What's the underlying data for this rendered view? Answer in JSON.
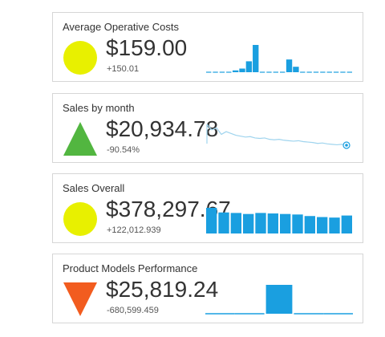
{
  "colors": {
    "yellow": "#e8f000",
    "green": "#52b640",
    "orange": "#f25c1f",
    "spark_blue": "#1a9fe0",
    "spark_line": "#9fd4ee"
  },
  "cards": [
    {
      "title": "Average Operative Costs",
      "value": "$159.00",
      "delta": "+150.01",
      "indicator": "yellow-circle",
      "spark_type": "bar-dashed",
      "spark_values": [
        0,
        0,
        0,
        0,
        2,
        4,
        12,
        30,
        0,
        0,
        0,
        0,
        14,
        6,
        0,
        0,
        0,
        0,
        0,
        0,
        0,
        0
      ]
    },
    {
      "title": "Sales by month",
      "value": "$20,934.78",
      "delta": "-90.54%",
      "indicator": "green-triangle-up",
      "spark_type": "line",
      "spark_values": [
        100,
        88,
        92,
        78,
        84,
        80,
        76,
        74,
        72,
        73,
        70,
        69,
        70,
        67,
        66,
        67,
        65,
        64,
        63,
        64,
        62,
        61,
        60,
        58,
        59,
        57,
        56,
        55,
        56,
        54
      ]
    },
    {
      "title": "Sales Overall",
      "value": "$378,297.67",
      "delta": "+122,012.939",
      "indicator": "yellow-circle",
      "spark_type": "bar",
      "spark_values": [
        100,
        82,
        80,
        76,
        80,
        78,
        76,
        74,
        68,
        64,
        62,
        70
      ]
    },
    {
      "title": "Product Models Performance",
      "value": "$25,819.24",
      "delta": "-680,599.459",
      "indicator": "orange-triangle-down",
      "spark_type": "step",
      "spark_values": [
        0,
        0,
        1,
        0,
        0
      ]
    }
  ]
}
